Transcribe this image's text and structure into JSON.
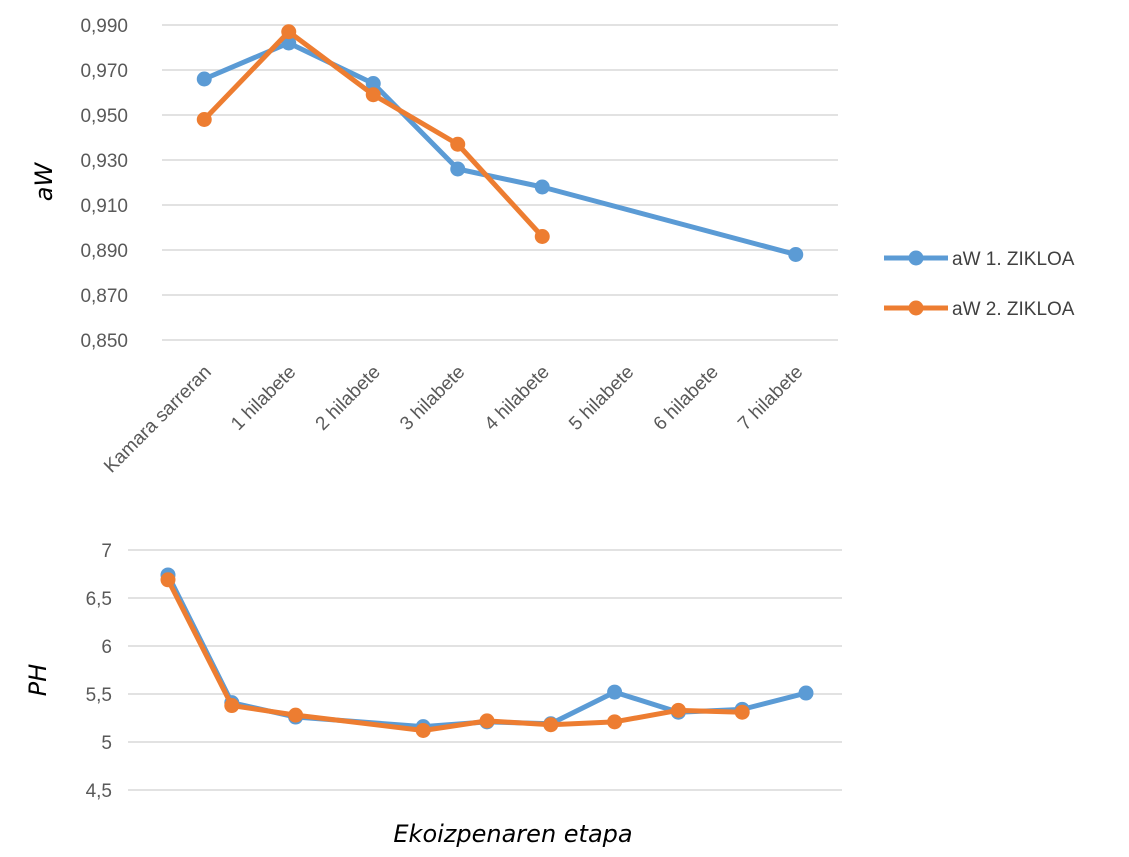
{
  "colors": {
    "series1": "#5b9bd5",
    "series2": "#ed7d31",
    "grid": "#d9d9d9",
    "text": "#595959"
  },
  "xlabel": "Ekoizpenaren etapa",
  "chart_data": [
    {
      "type": "line",
      "ylabel": "aW",
      "ylim": [
        0.85,
        0.99
      ],
      "yticks": [
        "0,850",
        "0,870",
        "0,890",
        "0,910",
        "0,930",
        "0,950",
        "0,970",
        "0,990"
      ],
      "categories": [
        "Kamara sarreran",
        "1 hilabete",
        "2 hilabete",
        "3 hilabete",
        "4 hilabete",
        "5 hilabete",
        "6 hilabete",
        "7 hilabete"
      ],
      "grid": true,
      "legend": "right",
      "series": [
        {
          "name": "aW 1. ZIKLOA",
          "values": [
            0.966,
            0.982,
            0.964,
            0.926,
            0.918,
            null,
            null,
            0.888
          ],
          "connect_gaps": true
        },
        {
          "name": "aW 2. ZIKLOA",
          "values": [
            0.948,
            0.987,
            0.959,
            0.937,
            0.896,
            null,
            null,
            null
          ],
          "connect_gaps": false
        }
      ]
    },
    {
      "type": "line",
      "ylabel": "PH",
      "ylim": [
        4.5,
        7
      ],
      "yticks": [
        "4,5",
        "5",
        "5,5",
        "6",
        "6,5",
        "7"
      ],
      "grid": true,
      "series": [
        {
          "values": [
            6.74,
            5.41,
            5.26,
            null,
            5.16,
            5.21,
            5.19,
            5.52,
            5.31,
            5.34,
            5.51
          ]
        },
        {
          "values": [
            6.69,
            5.38,
            5.28,
            null,
            5.12,
            5.22,
            5.18,
            5.21,
            5.33,
            5.31,
            null
          ]
        }
      ]
    }
  ]
}
